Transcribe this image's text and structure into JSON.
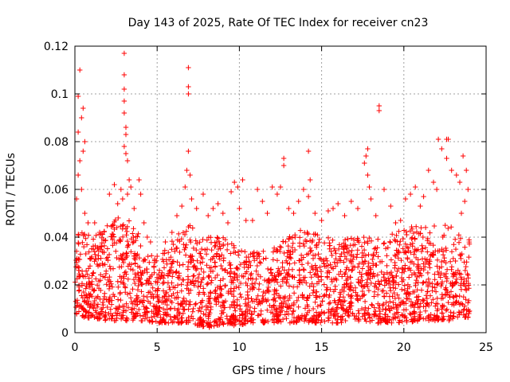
{
  "chart_data": {
    "type": "scatter",
    "title": "Day 143 of 2025, Rate Of TEC Index for receiver cn23",
    "xlabel": "GPS time / hours",
    "ylabel": "ROTI / TECUs",
    "xlim": [
      0,
      25
    ],
    "ylim": [
      0,
      0.12
    ],
    "xticks": [
      0,
      5,
      10,
      15,
      20,
      25
    ],
    "xtick_labels": [
      "0",
      "5",
      "10",
      "15",
      "20",
      "25"
    ],
    "yticks": [
      0,
      0.02,
      0.04,
      0.06,
      0.08,
      0.1,
      0.12
    ],
    "ytick_labels": [
      "0",
      "0.02",
      "0.04",
      "0.06",
      "0.08",
      "0.1",
      "0.12"
    ],
    "grid": true,
    "marker": "+",
    "color": "#ff0000",
    "data_x_range": [
      0,
      24
    ],
    "dense_band": [
      {
        "x": 0,
        "lo": 0.007,
        "hi": 0.045
      },
      {
        "x": 1,
        "lo": 0.006,
        "hi": 0.04
      },
      {
        "x": 2,
        "lo": 0.005,
        "hi": 0.045
      },
      {
        "x": 3,
        "lo": 0.005,
        "hi": 0.05
      },
      {
        "x": 4,
        "lo": 0.005,
        "hi": 0.04
      },
      {
        "x": 5,
        "lo": 0.004,
        "hi": 0.03
      },
      {
        "x": 6,
        "lo": 0.004,
        "hi": 0.04
      },
      {
        "x": 7,
        "lo": 0.004,
        "hi": 0.045
      },
      {
        "x": 8,
        "lo": 0.002,
        "hi": 0.04
      },
      {
        "x": 9,
        "lo": 0.003,
        "hi": 0.04
      },
      {
        "x": 10,
        "lo": 0.003,
        "hi": 0.035
      },
      {
        "x": 11,
        "lo": 0.004,
        "hi": 0.035
      },
      {
        "x": 12,
        "lo": 0.004,
        "hi": 0.035
      },
      {
        "x": 13,
        "lo": 0.004,
        "hi": 0.04
      },
      {
        "x": 14,
        "lo": 0.004,
        "hi": 0.045
      },
      {
        "x": 15,
        "lo": 0.004,
        "hi": 0.04
      },
      {
        "x": 16,
        "lo": 0.004,
        "hi": 0.04
      },
      {
        "x": 17,
        "lo": 0.005,
        "hi": 0.04
      },
      {
        "x": 18,
        "lo": 0.004,
        "hi": 0.04
      },
      {
        "x": 19,
        "lo": 0.004,
        "hi": 0.04
      },
      {
        "x": 20,
        "lo": 0.004,
        "hi": 0.045
      },
      {
        "x": 21,
        "lo": 0.005,
        "hi": 0.045
      },
      {
        "x": 22,
        "lo": 0.005,
        "hi": 0.045
      },
      {
        "x": 23,
        "lo": 0.005,
        "hi": 0.045
      },
      {
        "x": 24,
        "lo": 0.006,
        "hi": 0.04
      }
    ],
    "points": [
      [
        0.2,
        0.084
      ],
      [
        0.3,
        0.11
      ],
      [
        0.2,
        0.099
      ],
      [
        0.5,
        0.094
      ],
      [
        0.4,
        0.09
      ],
      [
        0.6,
        0.08
      ],
      [
        0.5,
        0.076
      ],
      [
        0.3,
        0.072
      ],
      [
        0.2,
        0.066
      ],
      [
        0.4,
        0.06
      ],
      [
        0.1,
        0.056
      ],
      [
        0.6,
        0.05
      ],
      [
        0.8,
        0.046
      ],
      [
        1.2,
        0.046
      ],
      [
        1.5,
        0.042
      ],
      [
        2.1,
        0.058
      ],
      [
        2.4,
        0.062
      ],
      [
        2.6,
        0.054
      ],
      [
        2.8,
        0.06
      ],
      [
        2.9,
        0.056
      ],
      [
        3.0,
        0.117
      ],
      [
        3.0,
        0.108
      ],
      [
        3.0,
        0.102
      ],
      [
        3.0,
        0.097
      ],
      [
        3.0,
        0.092
      ],
      [
        3.1,
        0.086
      ],
      [
        3.1,
        0.083
      ],
      [
        3.0,
        0.078
      ],
      [
        3.1,
        0.075
      ],
      [
        3.2,
        0.072
      ],
      [
        3.3,
        0.064
      ],
      [
        3.4,
        0.061
      ],
      [
        3.2,
        0.058
      ],
      [
        3.6,
        0.052
      ],
      [
        3.9,
        0.064
      ],
      [
        4.0,
        0.058
      ],
      [
        4.2,
        0.046
      ],
      [
        4.4,
        0.04
      ],
      [
        4.6,
        0.038
      ],
      [
        5.0,
        0.032
      ],
      [
        5.5,
        0.038
      ],
      [
        5.9,
        0.042
      ],
      [
        6.2,
        0.049
      ],
      [
        6.5,
        0.053
      ],
      [
        6.7,
        0.061
      ],
      [
        6.8,
        0.068
      ],
      [
        6.9,
        0.111
      ],
      [
        6.9,
        0.103
      ],
      [
        6.9,
        0.1
      ],
      [
        6.9,
        0.076
      ],
      [
        7.0,
        0.066
      ],
      [
        7.1,
        0.056
      ],
      [
        7.4,
        0.052
      ],
      [
        7.8,
        0.058
      ],
      [
        8.1,
        0.049
      ],
      [
        8.4,
        0.052
      ],
      [
        8.7,
        0.054
      ],
      [
        9.0,
        0.05
      ],
      [
        9.3,
        0.046
      ],
      [
        9.5,
        0.059
      ],
      [
        9.7,
        0.063
      ],
      [
        9.9,
        0.061
      ],
      [
        10.0,
        0.052
      ],
      [
        10.2,
        0.064
      ],
      [
        10.4,
        0.047
      ],
      [
        10.8,
        0.047
      ],
      [
        11.1,
        0.06
      ],
      [
        11.4,
        0.055
      ],
      [
        11.7,
        0.05
      ],
      [
        12.0,
        0.061
      ],
      [
        12.3,
        0.058
      ],
      [
        12.5,
        0.061
      ],
      [
        12.7,
        0.073
      ],
      [
        12.7,
        0.07
      ],
      [
        13.0,
        0.052
      ],
      [
        13.3,
        0.05
      ],
      [
        13.6,
        0.055
      ],
      [
        13.9,
        0.06
      ],
      [
        14.2,
        0.076
      ],
      [
        14.3,
        0.064
      ],
      [
        14.2,
        0.057
      ],
      [
        14.6,
        0.05
      ],
      [
        15.0,
        0.047
      ],
      [
        15.4,
        0.051
      ],
      [
        15.7,
        0.052
      ],
      [
        16.0,
        0.054
      ],
      [
        16.4,
        0.049
      ],
      [
        16.8,
        0.055
      ],
      [
        17.2,
        0.052
      ],
      [
        17.6,
        0.071
      ],
      [
        17.8,
        0.077
      ],
      [
        17.7,
        0.074
      ],
      [
        17.8,
        0.066
      ],
      [
        17.9,
        0.061
      ],
      [
        18.0,
        0.056
      ],
      [
        18.3,
        0.049
      ],
      [
        18.5,
        0.095
      ],
      [
        18.5,
        0.093
      ],
      [
        18.8,
        0.06
      ],
      [
        19.2,
        0.053
      ],
      [
        19.5,
        0.046
      ],
      [
        19.8,
        0.047
      ],
      [
        20.1,
        0.056
      ],
      [
        20.4,
        0.058
      ],
      [
        20.7,
        0.061
      ],
      [
        21.0,
        0.053
      ],
      [
        21.2,
        0.057
      ],
      [
        21.5,
        0.068
      ],
      [
        21.8,
        0.063
      ],
      [
        22.0,
        0.06
      ],
      [
        22.1,
        0.081
      ],
      [
        22.3,
        0.077
      ],
      [
        22.6,
        0.081
      ],
      [
        22.7,
        0.081
      ],
      [
        22.6,
        0.073
      ],
      [
        22.9,
        0.068
      ],
      [
        23.2,
        0.066
      ],
      [
        23.4,
        0.063
      ],
      [
        23.6,
        0.074
      ],
      [
        23.8,
        0.068
      ],
      [
        23.9,
        0.06
      ],
      [
        23.7,
        0.055
      ],
      [
        23.5,
        0.05
      ]
    ]
  }
}
